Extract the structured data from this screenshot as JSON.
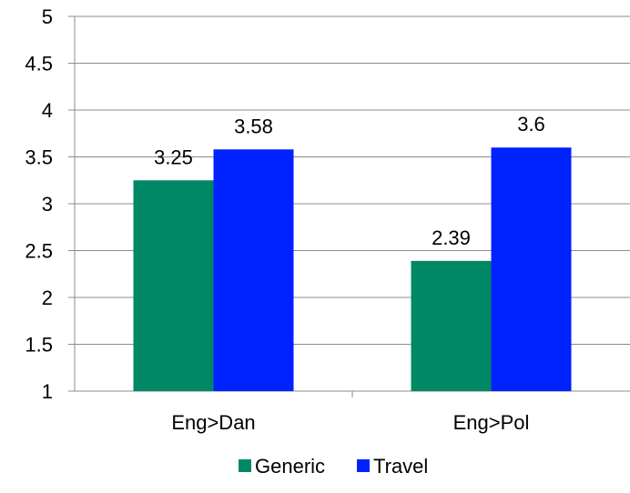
{
  "chart_data": {
    "type": "bar",
    "categories": [
      "Eng>Dan",
      "Eng>Pol"
    ],
    "series": [
      {
        "name": "Generic",
        "values": [
          3.25,
          2.39
        ],
        "color": "#008866"
      },
      {
        "name": "Travel",
        "values": [
          3.58,
          3.6
        ],
        "color": "#0022FF"
      }
    ],
    "data_labels": [
      [
        "3.25",
        "2.39"
      ],
      [
        "3.58",
        "3.6"
      ]
    ],
    "ylim": [
      1,
      5
    ],
    "yticks": [
      "1",
      "1.5",
      "2",
      "2.5",
      "3",
      "3.5",
      "4",
      "4.5",
      "5"
    ],
    "grid": true,
    "legend_position": "bottom"
  }
}
